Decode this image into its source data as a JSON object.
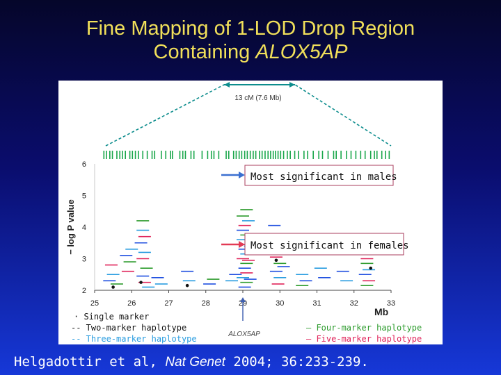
{
  "title": {
    "line1": "Fine Mapping of 1-LOD Drop Region",
    "line2_prefix": "Containing ",
    "line2_italic": "ALOX5AP"
  },
  "citation": {
    "authors": "Helgadottir et al, ",
    "journal": "Nat Genet",
    "rest": " 2004; 36:233-239."
  },
  "colors": {
    "title": "#f1e05a",
    "single": "#111111",
    "two": "#1f4fe0",
    "three": "#2a9de0",
    "four": "#2e9c2e",
    "five": "#e0245a",
    "marker": "#19a64a",
    "bracket": "#0d8d8d",
    "arrow_male": "#3a6fd0",
    "arrow_female": "#e23a55",
    "box": "#a83c5c"
  },
  "chart_data": {
    "type": "scatter",
    "xlabel": "Mb",
    "ylabel": "− log P value",
    "xlim": [
      25,
      33
    ],
    "ylim": [
      2,
      6
    ],
    "x_ticks": [
      "25",
      "26",
      "27",
      "28",
      "29",
      "30",
      "31",
      "32",
      "33"
    ],
    "y_ticks": [
      "2",
      "3",
      "4",
      "5",
      "6"
    ],
    "region_label": "13 cM (7.6 Mb)",
    "gene_label": "ALOX5AP",
    "gene_position": 29.0,
    "annotations": [
      {
        "text": "Most significant in males",
        "x": 29.0,
        "y": 5.7
      },
      {
        "text": "Most significant in females",
        "x": 29.0,
        "y": 3.5
      }
    ],
    "legend": {
      "single": "· Single marker",
      "two": "-- Two-marker haplotype",
      "three": "-- Three-marker haplotype",
      "four": "— Four-marker haplotype",
      "five": "— Five-marker haplotype"
    },
    "markers": [
      25.25,
      25.32,
      25.41,
      25.48,
      25.6,
      25.68,
      25.75,
      25.83,
      25.95,
      26.02,
      26.1,
      26.18,
      26.3,
      26.42,
      26.55,
      26.62,
      26.8,
      26.92,
      27.05,
      27.1,
      27.3,
      27.38,
      27.45,
      27.6,
      27.68,
      27.9,
      28.05,
      28.15,
      28.22,
      28.35,
      28.55,
      28.62,
      28.75,
      28.82,
      28.9,
      28.97,
      29.05,
      29.12,
      29.2,
      29.28,
      29.35,
      29.45,
      29.52,
      29.6,
      29.68,
      29.75,
      29.82,
      29.88,
      29.95,
      30.02,
      30.1,
      30.2,
      30.28,
      30.4,
      30.5,
      30.65,
      30.75,
      30.9,
      31.05,
      31.15,
      31.3,
      31.45,
      31.52,
      31.65,
      31.8,
      31.92,
      32.05,
      32.18,
      32.3,
      32.45,
      32.55,
      32.62,
      32.75,
      32.85,
      32.95
    ],
    "haplotype_segments": [
      {
        "type": "two",
        "x": 25.4,
        "y": 2.3
      },
      {
        "type": "three",
        "x": 25.5,
        "y": 2.5
      },
      {
        "type": "five",
        "x": 25.45,
        "y": 2.8
      },
      {
        "type": "four",
        "x": 25.6,
        "y": 2.2
      },
      {
        "type": "two",
        "x": 25.85,
        "y": 3.1
      },
      {
        "type": "five",
        "x": 25.9,
        "y": 2.6
      },
      {
        "type": "three",
        "x": 26.0,
        "y": 3.3
      },
      {
        "type": "four",
        "x": 25.95,
        "y": 2.9
      },
      {
        "type": "four",
        "x": 26.3,
        "y": 4.2
      },
      {
        "type": "three",
        "x": 26.3,
        "y": 3.9
      },
      {
        "type": "five",
        "x": 26.35,
        "y": 3.7
      },
      {
        "type": "two",
        "x": 26.25,
        "y": 3.5
      },
      {
        "type": "three",
        "x": 26.35,
        "y": 3.2
      },
      {
        "type": "five",
        "x": 26.3,
        "y": 3.0
      },
      {
        "type": "four",
        "x": 26.4,
        "y": 2.7
      },
      {
        "type": "two",
        "x": 26.3,
        "y": 2.45
      },
      {
        "type": "five",
        "x": 26.35,
        "y": 2.25
      },
      {
        "type": "three",
        "x": 26.45,
        "y": 2.1
      },
      {
        "type": "two",
        "x": 26.7,
        "y": 2.4
      },
      {
        "type": "three",
        "x": 26.8,
        "y": 2.2
      },
      {
        "type": "two",
        "x": 27.5,
        "y": 2.6
      },
      {
        "type": "three",
        "x": 27.55,
        "y": 2.3
      },
      {
        "type": "two",
        "x": 28.1,
        "y": 2.2
      },
      {
        "type": "four",
        "x": 28.2,
        "y": 2.35
      },
      {
        "type": "three",
        "x": 28.7,
        "y": 2.3
      },
      {
        "type": "two",
        "x": 28.8,
        "y": 2.5
      },
      {
        "type": "four",
        "x": 29.1,
        "y": 4.55
      },
      {
        "type": "four",
        "x": 29.0,
        "y": 4.35
      },
      {
        "type": "three",
        "x": 29.15,
        "y": 4.2
      },
      {
        "type": "five",
        "x": 29.05,
        "y": 4.05
      },
      {
        "type": "two",
        "x": 29.0,
        "y": 3.9
      },
      {
        "type": "four",
        "x": 29.1,
        "y": 3.75
      },
      {
        "type": "three",
        "x": 29.0,
        "y": 3.6
      },
      {
        "type": "five",
        "x": 29.1,
        "y": 3.45
      },
      {
        "type": "two",
        "x": 29.05,
        "y": 3.3
      },
      {
        "type": "three",
        "x": 29.1,
        "y": 3.15
      },
      {
        "type": "five",
        "x": 29.0,
        "y": 3.0
      },
      {
        "type": "four",
        "x": 29.1,
        "y": 2.85
      },
      {
        "type": "two",
        "x": 29.05,
        "y": 2.7
      },
      {
        "type": "five",
        "x": 29.1,
        "y": 2.55
      },
      {
        "type": "three",
        "x": 29.0,
        "y": 2.4
      },
      {
        "type": "four",
        "x": 29.1,
        "y": 2.25
      },
      {
        "type": "two",
        "x": 29.05,
        "y": 2.1
      },
      {
        "type": "five",
        "x": 29.15,
        "y": 2.95
      },
      {
        "type": "three",
        "x": 29.2,
        "y": 3.4
      },
      {
        "type": "two",
        "x": 29.2,
        "y": 2.35
      },
      {
        "type": "two",
        "x": 29.85,
        "y": 4.05
      },
      {
        "type": "three",
        "x": 29.95,
        "y": 3.3
      },
      {
        "type": "five",
        "x": 29.9,
        "y": 3.05
      },
      {
        "type": "four",
        "x": 30.0,
        "y": 2.85
      },
      {
        "type": "two",
        "x": 29.9,
        "y": 2.6
      },
      {
        "type": "three",
        "x": 30.0,
        "y": 2.4
      },
      {
        "type": "five",
        "x": 29.95,
        "y": 2.2
      },
      {
        "type": "two",
        "x": 30.1,
        "y": 2.75
      },
      {
        "type": "three",
        "x": 30.6,
        "y": 2.5
      },
      {
        "type": "two",
        "x": 30.7,
        "y": 2.3
      },
      {
        "type": "four",
        "x": 30.6,
        "y": 2.15
      },
      {
        "type": "three",
        "x": 31.1,
        "y": 2.7
      },
      {
        "type": "two",
        "x": 31.2,
        "y": 2.4
      },
      {
        "type": "two",
        "x": 31.7,
        "y": 2.6
      },
      {
        "type": "three",
        "x": 31.8,
        "y": 2.3
      },
      {
        "type": "five",
        "x": 32.35,
        "y": 3.0
      },
      {
        "type": "four",
        "x": 32.35,
        "y": 2.85
      },
      {
        "type": "three",
        "x": 32.4,
        "y": 2.65
      },
      {
        "type": "two",
        "x": 32.3,
        "y": 2.5
      },
      {
        "type": "five",
        "x": 32.4,
        "y": 2.3
      },
      {
        "type": "four",
        "x": 32.35,
        "y": 2.15
      },
      {
        "type": "three",
        "x": 32.45,
        "y": 3.15
      }
    ],
    "single_points": [
      {
        "x": 26.25,
        "y": 2.25
      },
      {
        "x": 29.9,
        "y": 2.95
      },
      {
        "x": 32.45,
        "y": 2.7
      },
      {
        "x": 25.5,
        "y": 2.1
      },
      {
        "x": 27.5,
        "y": 2.15
      }
    ]
  }
}
